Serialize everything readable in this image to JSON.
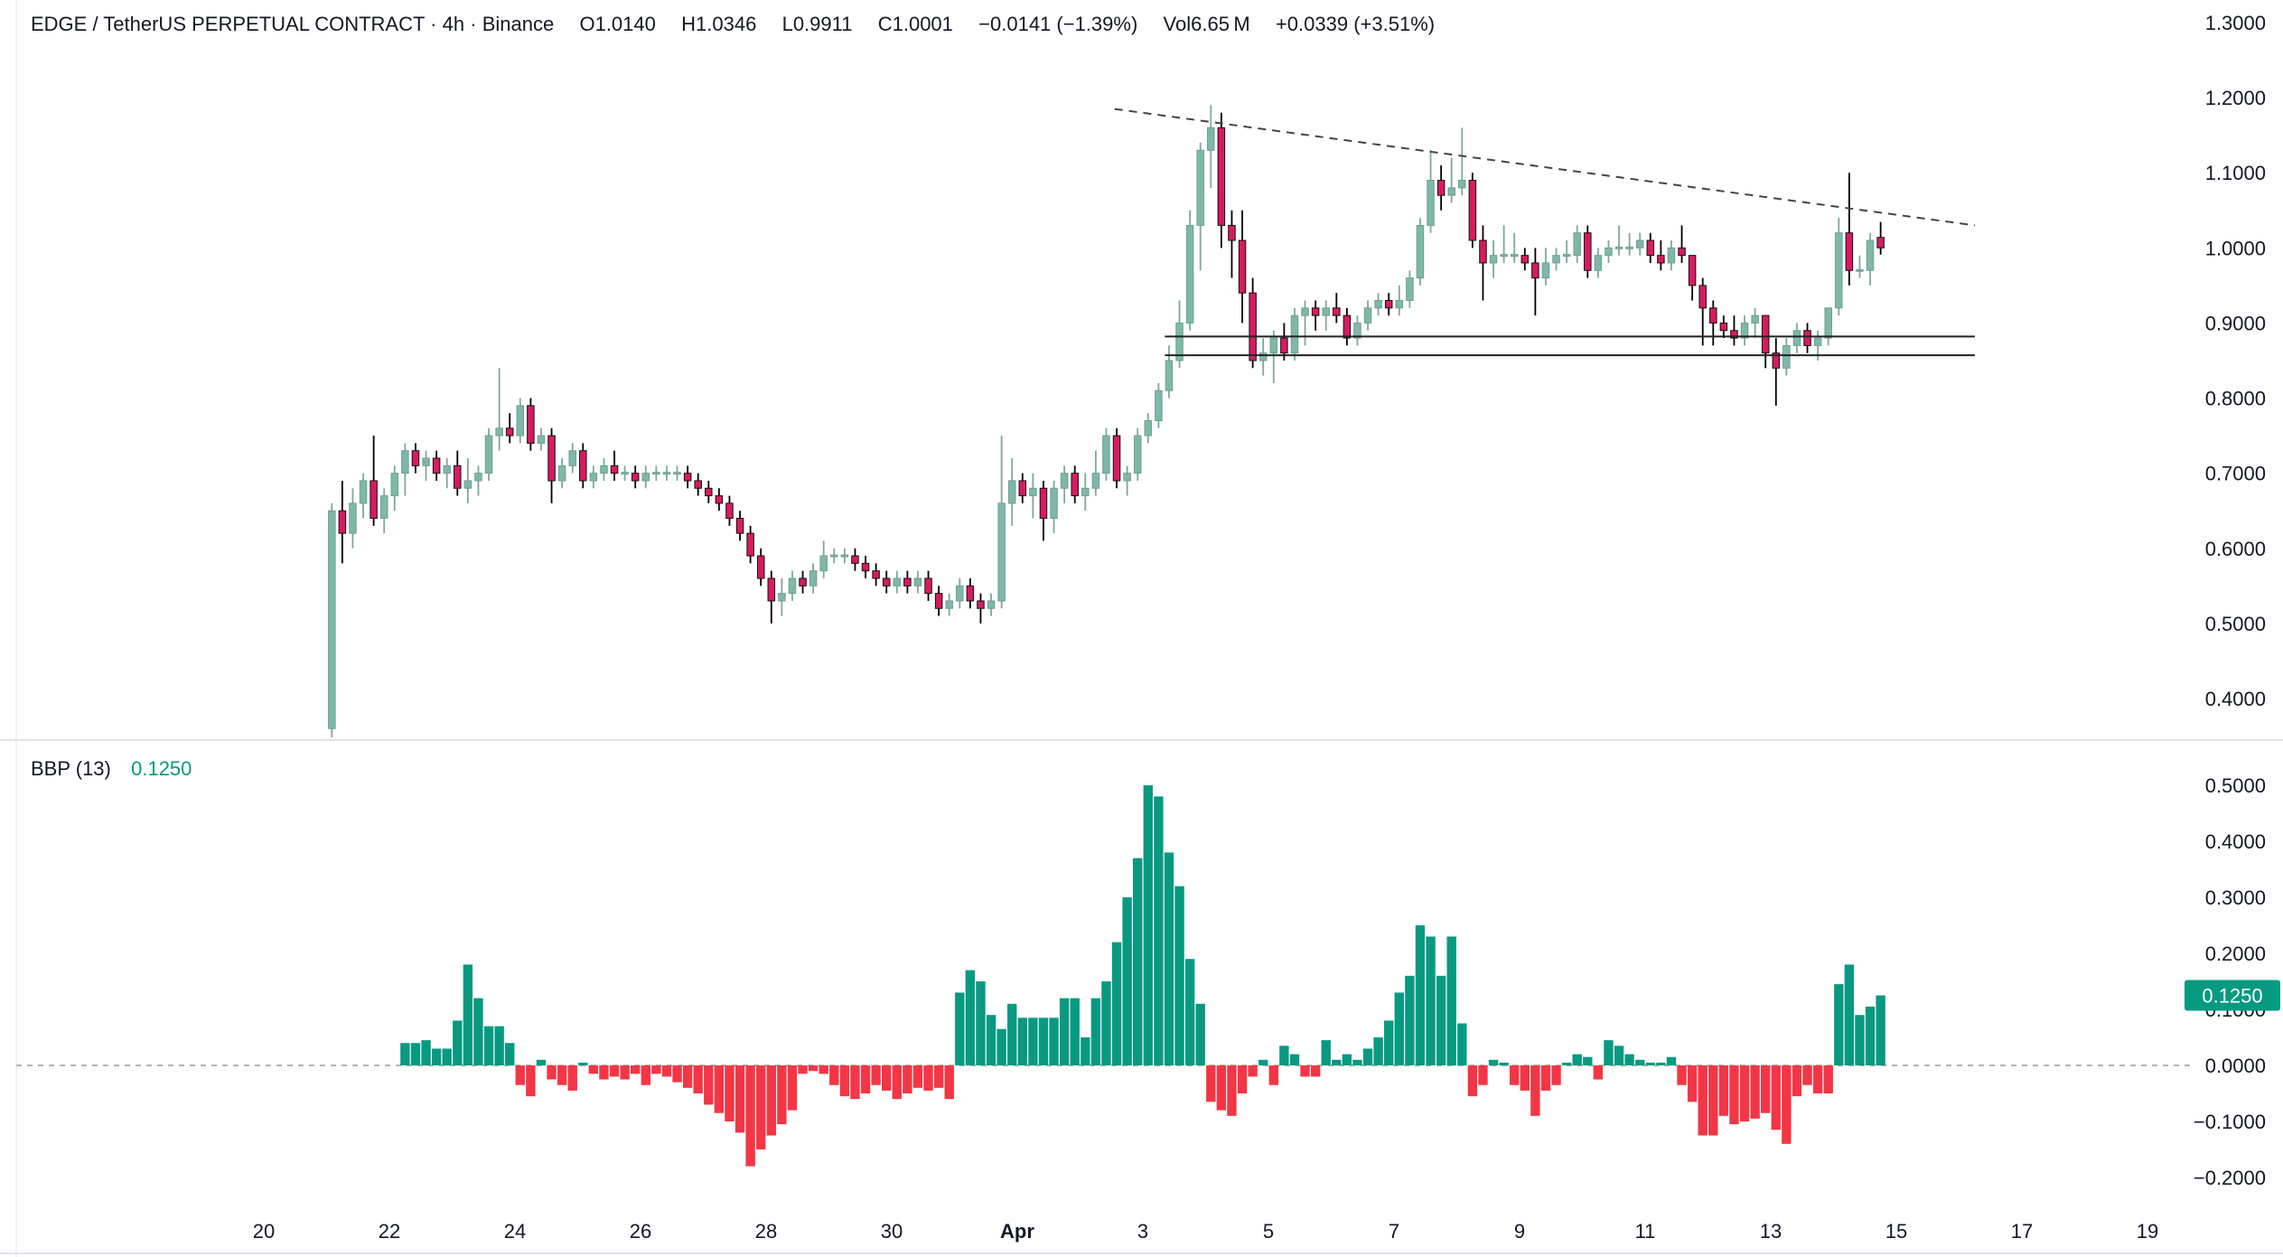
{
  "header": {
    "pair": "EDGE / TetherUS PERPETUAL CONTRACT",
    "interval": "4h",
    "exchange": "Binance",
    "o_label": "O",
    "o_value": "1.0140",
    "h_label": "H",
    "h_value": "1.0346",
    "l_label": "L",
    "l_value": "0.9911",
    "c_label": "C",
    "c_value": "1.0001",
    "change": "−0.0141 (−1.39%)",
    "vol_label": "Vol",
    "vol_value": "6.65 M",
    "change2": "+0.0339 (+3.51%)"
  },
  "indicator": {
    "name": "BBP (13)",
    "value": "0.1250"
  },
  "colors": {
    "up": "#7fb8a8",
    "down": "#d81b60",
    "bbp_pos": "#089981",
    "bbp_neg": "#f23645",
    "grid_line": "#e6e6e6",
    "badge": "#089981"
  },
  "chart_data": [
    {
      "type": "candlestick",
      "title": "EDGE / TetherUS PERPETUAL CONTRACT · 4h · Binance",
      "y_axis_ticks": [
        "1.3000",
        "1.2000",
        "1.1000",
        "1.0000",
        "0.9000",
        "0.8000",
        "0.7000",
        "0.6000",
        "0.5000",
        "0.4000"
      ],
      "ylim": [
        0.37,
        1.32
      ],
      "x_axis_ticks": [
        "20",
        "22",
        "24",
        "26",
        "28",
        "30",
        "Apr",
        "3",
        "5",
        "7",
        "9",
        "11",
        "13",
        "15",
        "17",
        "19"
      ],
      "date_range": [
        "2025-03-21",
        "2025-04-15"
      ],
      "candles": [
        {
          "o": 0.36,
          "h": 0.66,
          "l": 0.3,
          "c": 0.65
        },
        {
          "o": 0.65,
          "h": 0.69,
          "l": 0.58,
          "c": 0.62
        },
        {
          "o": 0.62,
          "h": 0.68,
          "l": 0.6,
          "c": 0.66
        },
        {
          "o": 0.66,
          "h": 0.7,
          "l": 0.64,
          "c": 0.69
        },
        {
          "o": 0.69,
          "h": 0.75,
          "l": 0.63,
          "c": 0.64
        },
        {
          "o": 0.64,
          "h": 0.68,
          "l": 0.62,
          "c": 0.67
        },
        {
          "o": 0.67,
          "h": 0.71,
          "l": 0.65,
          "c": 0.7
        },
        {
          "o": 0.7,
          "h": 0.74,
          "l": 0.67,
          "c": 0.73
        },
        {
          "o": 0.73,
          "h": 0.74,
          "l": 0.7,
          "c": 0.71
        },
        {
          "o": 0.71,
          "h": 0.73,
          "l": 0.69,
          "c": 0.72
        },
        {
          "o": 0.72,
          "h": 0.73,
          "l": 0.69,
          "c": 0.7
        },
        {
          "o": 0.7,
          "h": 0.72,
          "l": 0.68,
          "c": 0.71
        },
        {
          "o": 0.71,
          "h": 0.73,
          "l": 0.67,
          "c": 0.68
        },
        {
          "o": 0.68,
          "h": 0.72,
          "l": 0.66,
          "c": 0.69
        },
        {
          "o": 0.69,
          "h": 0.71,
          "l": 0.67,
          "c": 0.7
        },
        {
          "o": 0.7,
          "h": 0.76,
          "l": 0.69,
          "c": 0.75
        },
        {
          "o": 0.75,
          "h": 0.84,
          "l": 0.73,
          "c": 0.76
        },
        {
          "o": 0.76,
          "h": 0.78,
          "l": 0.74,
          "c": 0.75
        },
        {
          "o": 0.75,
          "h": 0.8,
          "l": 0.74,
          "c": 0.79
        },
        {
          "o": 0.79,
          "h": 0.8,
          "l": 0.73,
          "c": 0.74
        },
        {
          "o": 0.74,
          "h": 0.76,
          "l": 0.73,
          "c": 0.75
        },
        {
          "o": 0.75,
          "h": 0.76,
          "l": 0.66,
          "c": 0.69
        },
        {
          "o": 0.69,
          "h": 0.72,
          "l": 0.68,
          "c": 0.71
        },
        {
          "o": 0.71,
          "h": 0.74,
          "l": 0.7,
          "c": 0.73
        },
        {
          "o": 0.73,
          "h": 0.74,
          "l": 0.68,
          "c": 0.69
        },
        {
          "o": 0.69,
          "h": 0.71,
          "l": 0.68,
          "c": 0.7
        },
        {
          "o": 0.7,
          "h": 0.72,
          "l": 0.69,
          "c": 0.71
        },
        {
          "o": 0.71,
          "h": 0.73,
          "l": 0.69,
          "c": 0.7
        },
        {
          "o": 0.7,
          "h": 0.71,
          "l": 0.69,
          "c": 0.7
        },
        {
          "o": 0.7,
          "h": 0.71,
          "l": 0.68,
          "c": 0.69
        },
        {
          "o": 0.69,
          "h": 0.71,
          "l": 0.68,
          "c": 0.7
        },
        {
          "o": 0.7,
          "h": 0.71,
          "l": 0.69,
          "c": 0.7
        },
        {
          "o": 0.7,
          "h": 0.71,
          "l": 0.69,
          "c": 0.7
        },
        {
          "o": 0.7,
          "h": 0.71,
          "l": 0.69,
          "c": 0.7
        },
        {
          "o": 0.7,
          "h": 0.71,
          "l": 0.68,
          "c": 0.69
        },
        {
          "o": 0.69,
          "h": 0.7,
          "l": 0.67,
          "c": 0.68
        },
        {
          "o": 0.68,
          "h": 0.69,
          "l": 0.66,
          "c": 0.67
        },
        {
          "o": 0.67,
          "h": 0.68,
          "l": 0.65,
          "c": 0.66
        },
        {
          "o": 0.66,
          "h": 0.67,
          "l": 0.63,
          "c": 0.64
        },
        {
          "o": 0.64,
          "h": 0.65,
          "l": 0.61,
          "c": 0.62
        },
        {
          "o": 0.62,
          "h": 0.63,
          "l": 0.58,
          "c": 0.59
        },
        {
          "o": 0.59,
          "h": 0.6,
          "l": 0.55,
          "c": 0.56
        },
        {
          "o": 0.56,
          "h": 0.57,
          "l": 0.5,
          "c": 0.53
        },
        {
          "o": 0.53,
          "h": 0.56,
          "l": 0.51,
          "c": 0.54
        },
        {
          "o": 0.54,
          "h": 0.57,
          "l": 0.53,
          "c": 0.56
        },
        {
          "o": 0.56,
          "h": 0.57,
          "l": 0.54,
          "c": 0.55
        },
        {
          "o": 0.55,
          "h": 0.58,
          "l": 0.54,
          "c": 0.57
        },
        {
          "o": 0.57,
          "h": 0.61,
          "l": 0.56,
          "c": 0.59
        },
        {
          "o": 0.59,
          "h": 0.6,
          "l": 0.58,
          "c": 0.59
        },
        {
          "o": 0.59,
          "h": 0.6,
          "l": 0.58,
          "c": 0.59
        },
        {
          "o": 0.59,
          "h": 0.6,
          "l": 0.57,
          "c": 0.58
        },
        {
          "o": 0.58,
          "h": 0.59,
          "l": 0.56,
          "c": 0.57
        },
        {
          "o": 0.57,
          "h": 0.58,
          "l": 0.55,
          "c": 0.56
        },
        {
          "o": 0.56,
          "h": 0.57,
          "l": 0.54,
          "c": 0.55
        },
        {
          "o": 0.55,
          "h": 0.57,
          "l": 0.54,
          "c": 0.56
        },
        {
          "o": 0.56,
          "h": 0.57,
          "l": 0.54,
          "c": 0.55
        },
        {
          "o": 0.55,
          "h": 0.57,
          "l": 0.54,
          "c": 0.56
        },
        {
          "o": 0.56,
          "h": 0.57,
          "l": 0.53,
          "c": 0.54
        },
        {
          "o": 0.54,
          "h": 0.55,
          "l": 0.51,
          "c": 0.52
        },
        {
          "o": 0.52,
          "h": 0.54,
          "l": 0.51,
          "c": 0.53
        },
        {
          "o": 0.53,
          "h": 0.56,
          "l": 0.52,
          "c": 0.55
        },
        {
          "o": 0.55,
          "h": 0.56,
          "l": 0.52,
          "c": 0.53
        },
        {
          "o": 0.53,
          "h": 0.54,
          "l": 0.5,
          "c": 0.52
        },
        {
          "o": 0.52,
          "h": 0.54,
          "l": 0.51,
          "c": 0.53
        },
        {
          "o": 0.53,
          "h": 0.75,
          "l": 0.52,
          "c": 0.66
        },
        {
          "o": 0.66,
          "h": 0.72,
          "l": 0.63,
          "c": 0.69
        },
        {
          "o": 0.69,
          "h": 0.7,
          "l": 0.66,
          "c": 0.67
        },
        {
          "o": 0.67,
          "h": 0.7,
          "l": 0.64,
          "c": 0.68
        },
        {
          "o": 0.68,
          "h": 0.69,
          "l": 0.61,
          "c": 0.64
        },
        {
          "o": 0.64,
          "h": 0.69,
          "l": 0.62,
          "c": 0.68
        },
        {
          "o": 0.68,
          "h": 0.71,
          "l": 0.66,
          "c": 0.7
        },
        {
          "o": 0.7,
          "h": 0.71,
          "l": 0.66,
          "c": 0.67
        },
        {
          "o": 0.67,
          "h": 0.7,
          "l": 0.65,
          "c": 0.68
        },
        {
          "o": 0.68,
          "h": 0.73,
          "l": 0.67,
          "c": 0.7
        },
        {
          "o": 0.7,
          "h": 0.76,
          "l": 0.69,
          "c": 0.75
        },
        {
          "o": 0.75,
          "h": 0.76,
          "l": 0.68,
          "c": 0.69
        },
        {
          "o": 0.69,
          "h": 0.71,
          "l": 0.67,
          "c": 0.7
        },
        {
          "o": 0.7,
          "h": 0.76,
          "l": 0.69,
          "c": 0.75
        },
        {
          "o": 0.75,
          "h": 0.78,
          "l": 0.74,
          "c": 0.77
        },
        {
          "o": 0.77,
          "h": 0.82,
          "l": 0.76,
          "c": 0.81
        },
        {
          "o": 0.81,
          "h": 0.87,
          "l": 0.8,
          "c": 0.85
        },
        {
          "o": 0.85,
          "h": 0.93,
          "l": 0.84,
          "c": 0.9
        },
        {
          "o": 0.9,
          "h": 1.05,
          "l": 0.89,
          "c": 1.03
        },
        {
          "o": 1.03,
          "h": 1.14,
          "l": 0.97,
          "c": 1.13
        },
        {
          "o": 1.13,
          "h": 1.19,
          "l": 1.08,
          "c": 1.16
        },
        {
          "o": 1.16,
          "h": 1.18,
          "l": 1.0,
          "c": 1.03
        },
        {
          "o": 1.03,
          "h": 1.05,
          "l": 0.96,
          "c": 1.01
        },
        {
          "o": 1.01,
          "h": 1.05,
          "l": 0.9,
          "c": 0.94
        },
        {
          "o": 0.94,
          "h": 0.96,
          "l": 0.84,
          "c": 0.85
        },
        {
          "o": 0.85,
          "h": 0.88,
          "l": 0.83,
          "c": 0.86
        },
        {
          "o": 0.86,
          "h": 0.89,
          "l": 0.82,
          "c": 0.88
        },
        {
          "o": 0.88,
          "h": 0.9,
          "l": 0.85,
          "c": 0.86
        },
        {
          "o": 0.86,
          "h": 0.92,
          "l": 0.85,
          "c": 0.91
        },
        {
          "o": 0.91,
          "h": 0.93,
          "l": 0.87,
          "c": 0.92
        },
        {
          "o": 0.92,
          "h": 0.93,
          "l": 0.89,
          "c": 0.91
        },
        {
          "o": 0.91,
          "h": 0.93,
          "l": 0.89,
          "c": 0.92
        },
        {
          "o": 0.92,
          "h": 0.94,
          "l": 0.9,
          "c": 0.91
        },
        {
          "o": 0.91,
          "h": 0.92,
          "l": 0.87,
          "c": 0.88
        },
        {
          "o": 0.88,
          "h": 0.91,
          "l": 0.87,
          "c": 0.9
        },
        {
          "o": 0.9,
          "h": 0.93,
          "l": 0.89,
          "c": 0.92
        },
        {
          "o": 0.92,
          "h": 0.94,
          "l": 0.91,
          "c": 0.93
        },
        {
          "o": 0.93,
          "h": 0.94,
          "l": 0.91,
          "c": 0.92
        },
        {
          "o": 0.92,
          "h": 0.95,
          "l": 0.91,
          "c": 0.93
        },
        {
          "o": 0.93,
          "h": 0.97,
          "l": 0.92,
          "c": 0.96
        },
        {
          "o": 0.96,
          "h": 1.04,
          "l": 0.95,
          "c": 1.03
        },
        {
          "o": 1.03,
          "h": 1.13,
          "l": 1.02,
          "c": 1.09
        },
        {
          "o": 1.09,
          "h": 1.11,
          "l": 1.05,
          "c": 1.07
        },
        {
          "o": 1.07,
          "h": 1.12,
          "l": 1.06,
          "c": 1.08
        },
        {
          "o": 1.08,
          "h": 1.16,
          "l": 1.07,
          "c": 1.09
        },
        {
          "o": 1.09,
          "h": 1.1,
          "l": 1.0,
          "c": 1.01
        },
        {
          "o": 1.01,
          "h": 1.03,
          "l": 0.93,
          "c": 0.98
        },
        {
          "o": 0.98,
          "h": 1.01,
          "l": 0.96,
          "c": 0.99
        },
        {
          "o": 0.99,
          "h": 1.03,
          "l": 0.98,
          "c": 0.99
        },
        {
          "o": 0.99,
          "h": 1.02,
          "l": 0.98,
          "c": 0.99
        },
        {
          "o": 0.99,
          "h": 1.0,
          "l": 0.97,
          "c": 0.98
        },
        {
          "o": 0.98,
          "h": 1.0,
          "l": 0.91,
          "c": 0.96
        },
        {
          "o": 0.96,
          "h": 1.0,
          "l": 0.95,
          "c": 0.98
        },
        {
          "o": 0.98,
          "h": 1.0,
          "l": 0.97,
          "c": 0.99
        },
        {
          "o": 0.99,
          "h": 1.01,
          "l": 0.98,
          "c": 0.99
        },
        {
          "o": 0.99,
          "h": 1.03,
          "l": 0.98,
          "c": 1.02
        },
        {
          "o": 1.02,
          "h": 1.03,
          "l": 0.96,
          "c": 0.97
        },
        {
          "o": 0.97,
          "h": 1.0,
          "l": 0.96,
          "c": 0.99
        },
        {
          "o": 0.99,
          "h": 1.01,
          "l": 0.98,
          "c": 1.0
        },
        {
          "o": 1.0,
          "h": 1.03,
          "l": 0.99,
          "c": 1.0
        },
        {
          "o": 1.0,
          "h": 1.02,
          "l": 0.99,
          "c": 1.0
        },
        {
          "o": 1.0,
          "h": 1.02,
          "l": 0.99,
          "c": 1.01
        },
        {
          "o": 1.01,
          "h": 1.02,
          "l": 0.98,
          "c": 0.99
        },
        {
          "o": 0.99,
          "h": 1.01,
          "l": 0.97,
          "c": 0.98
        },
        {
          "o": 0.98,
          "h": 1.01,
          "l": 0.97,
          "c": 1.0
        },
        {
          "o": 1.0,
          "h": 1.03,
          "l": 0.98,
          "c": 0.99
        },
        {
          "o": 0.99,
          "h": 0.99,
          "l": 0.93,
          "c": 0.95
        },
        {
          "o": 0.95,
          "h": 0.96,
          "l": 0.87,
          "c": 0.92
        },
        {
          "o": 0.92,
          "h": 0.93,
          "l": 0.87,
          "c": 0.9
        },
        {
          "o": 0.9,
          "h": 0.91,
          "l": 0.88,
          "c": 0.89
        },
        {
          "o": 0.89,
          "h": 0.91,
          "l": 0.87,
          "c": 0.88
        },
        {
          "o": 0.88,
          "h": 0.91,
          "l": 0.87,
          "c": 0.9
        },
        {
          "o": 0.9,
          "h": 0.92,
          "l": 0.88,
          "c": 0.91
        },
        {
          "o": 0.91,
          "h": 0.91,
          "l": 0.84,
          "c": 0.86
        },
        {
          "o": 0.86,
          "h": 0.88,
          "l": 0.79,
          "c": 0.84
        },
        {
          "o": 0.84,
          "h": 0.88,
          "l": 0.83,
          "c": 0.87
        },
        {
          "o": 0.87,
          "h": 0.9,
          "l": 0.86,
          "c": 0.89
        },
        {
          "o": 0.89,
          "h": 0.9,
          "l": 0.86,
          "c": 0.87
        },
        {
          "o": 0.87,
          "h": 0.89,
          "l": 0.85,
          "c": 0.88
        },
        {
          "o": 0.88,
          "h": 0.92,
          "l": 0.87,
          "c": 0.92
        },
        {
          "o": 0.92,
          "h": 1.04,
          "l": 0.91,
          "c": 1.02
        },
        {
          "o": 1.02,
          "h": 1.1,
          "l": 0.95,
          "c": 0.97
        },
        {
          "o": 0.97,
          "h": 0.99,
          "l": 0.96,
          "c": 0.97
        },
        {
          "o": 0.97,
          "h": 1.02,
          "l": 0.95,
          "c": 1.01
        },
        {
          "o": 1.014,
          "h": 1.0346,
          "l": 0.9911,
          "c": 1.0001
        }
      ],
      "trendlines": [
        {
          "style": "dashed",
          "from": {
            "date": "2025-04-03",
            "price": 1.185
          },
          "to": {
            "date": "2025-04-16",
            "price": 1.03
          }
        },
        {
          "style": "solid",
          "price": 0.882
        },
        {
          "style": "solid",
          "price": 0.857
        }
      ]
    },
    {
      "type": "bar",
      "title": "BBP (13)",
      "y_axis_ticks": [
        "0.5000",
        "0.4000",
        "0.3000",
        "0.2000",
        "0.1000",
        "0.0000",
        "−0.1000",
        "−0.2000"
      ],
      "ylim": [
        -0.24,
        0.52
      ],
      "last_value": "0.1250",
      "values": [
        0.04,
        0.04,
        0.045,
        0.03,
        0.03,
        0.08,
        0.18,
        0.12,
        0.07,
        0.07,
        0.04,
        -0.035,
        -0.055,
        0.01,
        -0.025,
        -0.035,
        -0.045,
        0.005,
        -0.015,
        -0.025,
        -0.02,
        -0.025,
        -0.015,
        -0.035,
        -0.015,
        -0.02,
        -0.03,
        -0.04,
        -0.05,
        -0.07,
        -0.085,
        -0.1,
        -0.12,
        -0.18,
        -0.15,
        -0.125,
        -0.105,
        -0.08,
        -0.015,
        -0.01,
        -0.015,
        -0.035,
        -0.055,
        -0.06,
        -0.05,
        -0.035,
        -0.045,
        -0.06,
        -0.05,
        -0.04,
        -0.045,
        -0.04,
        -0.06,
        0.13,
        0.17,
        0.15,
        0.09,
        0.065,
        0.11,
        0.085,
        0.085,
        0.085,
        0.085,
        0.12,
        0.12,
        0.05,
        0.12,
        0.15,
        0.22,
        0.3,
        0.37,
        0.5,
        0.48,
        0.38,
        0.32,
        0.19,
        0.11,
        -0.065,
        -0.08,
        -0.09,
        -0.05,
        -0.02,
        0.01,
        -0.035,
        0.035,
        0.02,
        -0.02,
        -0.02,
        0.045,
        0.01,
        0.02,
        0.01,
        0.03,
        0.05,
        0.08,
        0.13,
        0.16,
        0.25,
        0.23,
        0.16,
        0.23,
        0.075,
        -0.055,
        -0.035,
        0.01,
        0.005,
        -0.035,
        -0.045,
        -0.09,
        -0.045,
        -0.035,
        0.005,
        0.02,
        0.015,
        -0.025,
        0.045,
        0.035,
        0.02,
        0.01,
        0.005,
        0.005,
        0.015,
        -0.035,
        -0.065,
        -0.125,
        -0.125,
        -0.09,
        -0.105,
        -0.1,
        -0.095,
        -0.085,
        -0.115,
        -0.14,
        -0.055,
        -0.035,
        -0.05,
        -0.05,
        0.145,
        0.18,
        0.09,
        0.105,
        0.125
      ]
    }
  ]
}
